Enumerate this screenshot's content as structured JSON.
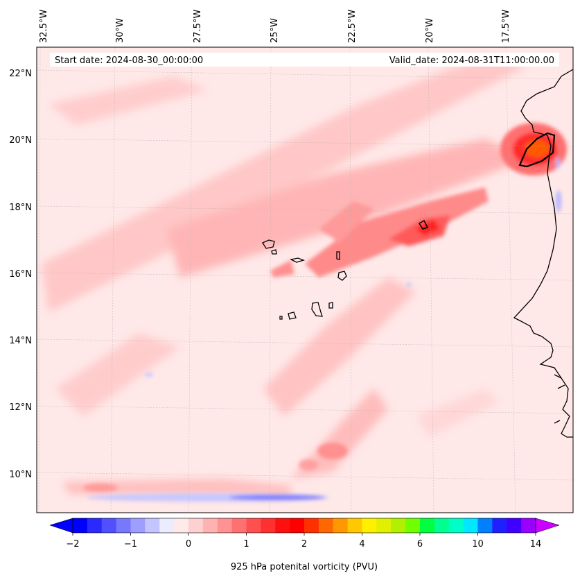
{
  "header": {
    "start_date": "Start date: 2024-08-30_00:00:00",
    "valid_date": "Valid_date: 2024-08-31T11:00:00.00"
  },
  "axes": {
    "longitude_labels": [
      "32.5°W",
      "30°W",
      "27.5°W",
      "25°W",
      "22.5°W",
      "20°W",
      "17.5°W"
    ],
    "latitude_labels": [
      "22°N",
      "20°N",
      "18°N",
      "16°N",
      "14°N",
      "12°N",
      "10°N"
    ]
  },
  "colorbar": {
    "label": "925 hPa potenital vorticity (PVU)",
    "ticks": [
      "−2",
      "−1",
      "0",
      "1",
      "2",
      "4",
      "6",
      "10",
      "14"
    ],
    "colors": [
      "#0000ff",
      "#2a2aff",
      "#5050ff",
      "#7878ff",
      "#9e9eff",
      "#c4c4ff",
      "#ececff",
      "#ffeaea",
      "#ffd0d0",
      "#ffb2b2",
      "#ff9292",
      "#ff7070",
      "#ff5050",
      "#ff3030",
      "#ff1010",
      "#ff0000",
      "#ff3000",
      "#ff6800",
      "#ff9800",
      "#ffc800",
      "#fff000",
      "#e0f000",
      "#b0f000",
      "#70ff00",
      "#00ff40",
      "#00ff90",
      "#00ffc8",
      "#00e8ff",
      "#0080ff",
      "#2020ff",
      "#4000ff",
      "#9a00ff"
    ],
    "under_color": "#0000ff",
    "over_color": "#cc00ff"
  },
  "map": {
    "background_color": "#ffe8e8",
    "coastline_color": "#000000"
  }
}
